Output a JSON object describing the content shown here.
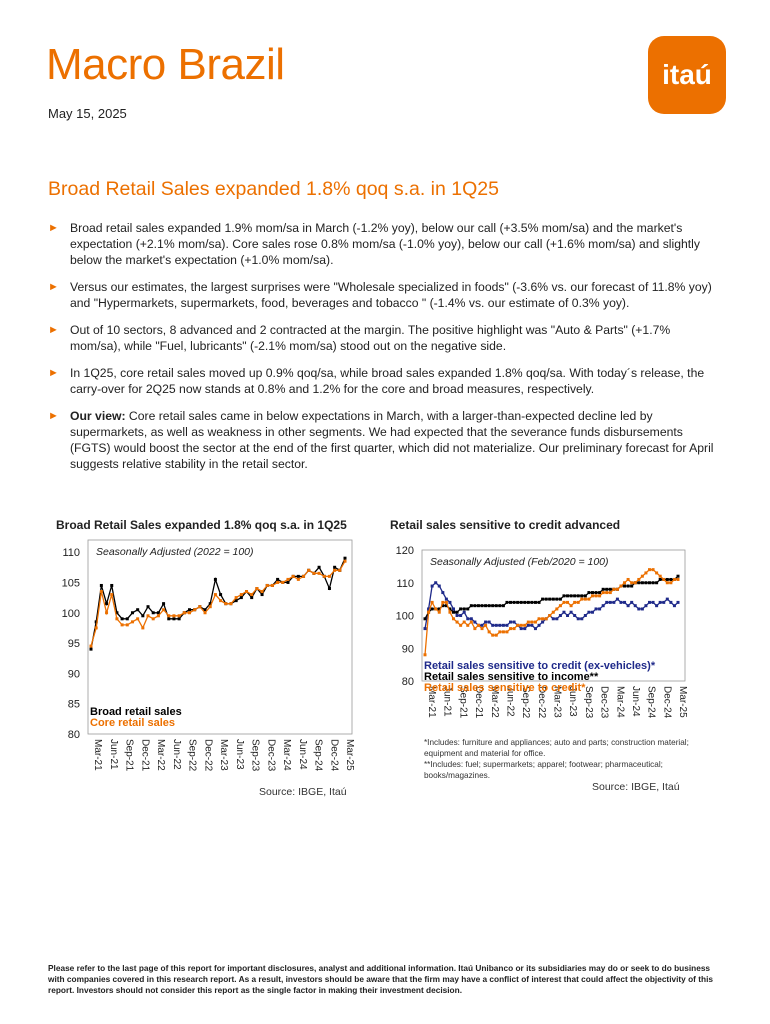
{
  "header": {
    "title": "Macro Brazil",
    "date": "May 15, 2025",
    "logo_text": "itaú"
  },
  "headline": "Broad Retail Sales expanded 1.8% qoq s.a. in 1Q25",
  "bullets": [
    {
      "lead": "",
      "text": "Broad retail sales expanded 1.9% mom/sa in March (-1.2% yoy), below our call (+3.5% mom/sa) and the market's expectation (+2.1% mom/sa). Core sales rose 0.8% mom/sa (-1.0% yoy), below our call (+1.6% mom/sa) and slightly below the market's expectation (+1.0% mom/sa)."
    },
    {
      "lead": "",
      "text": "Versus our estimates, the largest surprises were \"Wholesale specialized in foods\" (-3.6% vs. our forecast of 11.8% yoy) and \"Hypermarkets, supermarkets, food, beverages and tobacco \" (-1.4% vs. our estimate of 0.3% yoy)."
    },
    {
      "lead": "",
      "text": "Out of 10 sectors, 8 advanced and 2 contracted at the margin. The positive highlight was \"Auto & Parts\" (+1.7% mom/sa), while \"Fuel, lubricants\" (-2.1% mom/sa) stood out on the negative side."
    },
    {
      "lead": "",
      "text": "In 1Q25, core retail sales moved up 0.9% qoq/sa, while broad sales expanded 1.8% qoq/sa. With today´s release, the carry-over for 2Q25 now stands at 0.8% and 1.2% for the core and broad measures, respectively."
    },
    {
      "lead": "Our view:",
      "text": " Core retail sales came in below expectations in March, with a larger-than-expected decline led by supermarkets, as well as weakness in other segments. We had expected that the severance funds disbursements (FGTS) would boost the sector at the end of the first quarter, which did not materialize. Our preliminary forecast for April suggests relative stability in the retail sector."
    }
  ],
  "colors": {
    "accent": "#ec7000",
    "navy": "#1f2a8a",
    "black": "#000000"
  },
  "chart_data": [
    {
      "type": "line",
      "title": "Broad Retail Sales expanded 1.8% qoq s.a. in 1Q25",
      "annotation": "Seasonally Adjusted (2022 = 100)",
      "ylim": [
        80,
        112
      ],
      "yticks": [
        80,
        85,
        90,
        95,
        100,
        105,
        110
      ],
      "x_ticks": [
        "Mar-21",
        "Jun-21",
        "Sep-21",
        "Dec-21",
        "Mar-22",
        "Jun-22",
        "Sep-22",
        "Dec-22",
        "Mar-23",
        "Jun-23",
        "Sep-23",
        "Dec-23",
        "Mar-24",
        "Jun-24",
        "Sep-24",
        "Dec-24",
        "Mar-25"
      ],
      "series": [
        {
          "name": "Broad retail sales",
          "color": "#000000",
          "values": [
            94.0,
            98.5,
            104.5,
            101.5,
            104.5,
            100.0,
            99.0,
            99.0,
            100.0,
            100.5,
            99.5,
            101.0,
            100.0,
            100.0,
            101.5,
            99.0,
            99.0,
            99.0,
            100.0,
            100.5,
            100.5,
            101.0,
            100.5,
            101.5,
            105.5,
            103.0,
            101.5,
            101.5,
            102.0,
            102.5,
            103.5,
            102.5,
            104.0,
            103.0,
            104.5,
            104.5,
            105.5,
            105.0,
            105.0,
            106.0,
            106.0,
            106.0,
            107.0,
            106.5,
            107.5,
            106.0,
            104.0,
            107.5,
            107.0,
            109.0
          ]
        },
        {
          "name": "Core retail sales",
          "color": "#ec7000",
          "values": [
            94.5,
            97.5,
            103.5,
            100.0,
            103.0,
            99.0,
            98.0,
            98.0,
            98.5,
            99.0,
            97.5,
            99.5,
            99.0,
            99.5,
            100.5,
            99.5,
            99.5,
            99.5,
            100.0,
            100.0,
            100.5,
            101.0,
            100.0,
            101.0,
            103.0,
            102.0,
            101.5,
            101.5,
            102.5,
            103.0,
            103.5,
            103.0,
            104.0,
            103.5,
            104.5,
            104.5,
            105.0,
            105.0,
            105.5,
            106.0,
            105.5,
            106.0,
            107.0,
            106.5,
            106.5,
            106.0,
            106.0,
            107.0,
            107.0,
            108.5
          ]
        }
      ],
      "source": "Source: IBGE, Itaú"
    },
    {
      "type": "line",
      "title": "Retail sales sensitive to credit advanced",
      "annotation": "Seasonally Adjusted (Feb/2020 = 100)",
      "ylim": [
        80,
        120
      ],
      "yticks": [
        80,
        90,
        100,
        110,
        120
      ],
      "x_ticks": [
        "Mar-21",
        "Jun-21",
        "Sep-21",
        "Dec-21",
        "Mar-22",
        "Jun-22",
        "Sep-22",
        "Dec-22",
        "Mar-23",
        "Jun-23",
        "Sep-23",
        "Dec-23",
        "Mar-24",
        "Jun-24",
        "Sep-24",
        "Dec-24",
        "Mar-25"
      ],
      "series": [
        {
          "name": "Retail sales sensitive to credit (ex-vehicles)*",
          "color": "#1f2a8a",
          "values": [
            96,
            102,
            109,
            110,
            109,
            107,
            105,
            104,
            102,
            100,
            100,
            101,
            99,
            99,
            98,
            97,
            97,
            98,
            98,
            97,
            97,
            97,
            97,
            97,
            98,
            98,
            97,
            96,
            96,
            97,
            97,
            96,
            97,
            98,
            99,
            100,
            99,
            99,
            100,
            101,
            100,
            101,
            100,
            99,
            99,
            100,
            101,
            101,
            102,
            102,
            103,
            104,
            104,
            104,
            105,
            104,
            104,
            103,
            104,
            103,
            102,
            102,
            103,
            104,
            104,
            103,
            104,
            104,
            105,
            104,
            103,
            104
          ]
        },
        {
          "name": "Retail sales sensitive to income**",
          "color": "#000000",
          "values": [
            99,
            101,
            102,
            102,
            102,
            103,
            103,
            102,
            101,
            101,
            102,
            102,
            102,
            103,
            103,
            103,
            103,
            103,
            103,
            103,
            103,
            103,
            103,
            104,
            104,
            104,
            104,
            104,
            104,
            104,
            104,
            104,
            104,
            105,
            105,
            105,
            105,
            105,
            105,
            106,
            106,
            106,
            106,
            106,
            106,
            106,
            107,
            107,
            107,
            107,
            108,
            108,
            108,
            108,
            108,
            109,
            109,
            109,
            109,
            110,
            110,
            110,
            110,
            110,
            110,
            110,
            111,
            111,
            111,
            111,
            111,
            112
          ]
        },
        {
          "name": "Retail sales sensitive to credit*",
          "color": "#ec7000",
          "values": [
            88,
            101,
            104,
            102,
            101,
            104,
            104,
            101,
            99,
            98,
            97,
            98,
            97,
            98,
            96,
            97,
            96,
            97,
            95,
            94,
            94,
            95,
            95,
            95,
            96,
            96,
            97,
            97,
            97,
            98,
            98,
            98,
            99,
            99,
            99,
            100,
            101,
            102,
            103,
            104,
            104,
            103,
            104,
            104,
            105,
            105,
            105,
            106,
            106,
            106,
            107,
            107,
            107,
            108,
            108,
            109,
            110,
            111,
            110,
            110,
            111,
            112,
            113,
            114,
            114,
            113,
            112,
            111,
            110,
            110,
            111,
            111
          ]
        }
      ],
      "footnote_1": "*Includes: furniture and appliances; auto and parts; construction material; equipment and material for office.",
      "footnote_2": "**Includes: fuel; supermarkets; apparel; footwear; pharmaceutical; books/magazines.",
      "source": "Source: IBGE, Itaú"
    }
  ],
  "footer": "Please refer to the last page of this report for important disclosures, analyst and additional information. Itaú Unibanco or its subsidiaries may do or seek to do business with companies covered in this research report. As a result, investors should be aware that the firm may have a conflict of interest that could affect the objectivity of this report. Investors should not consider this report as the single factor in making their investment decision."
}
